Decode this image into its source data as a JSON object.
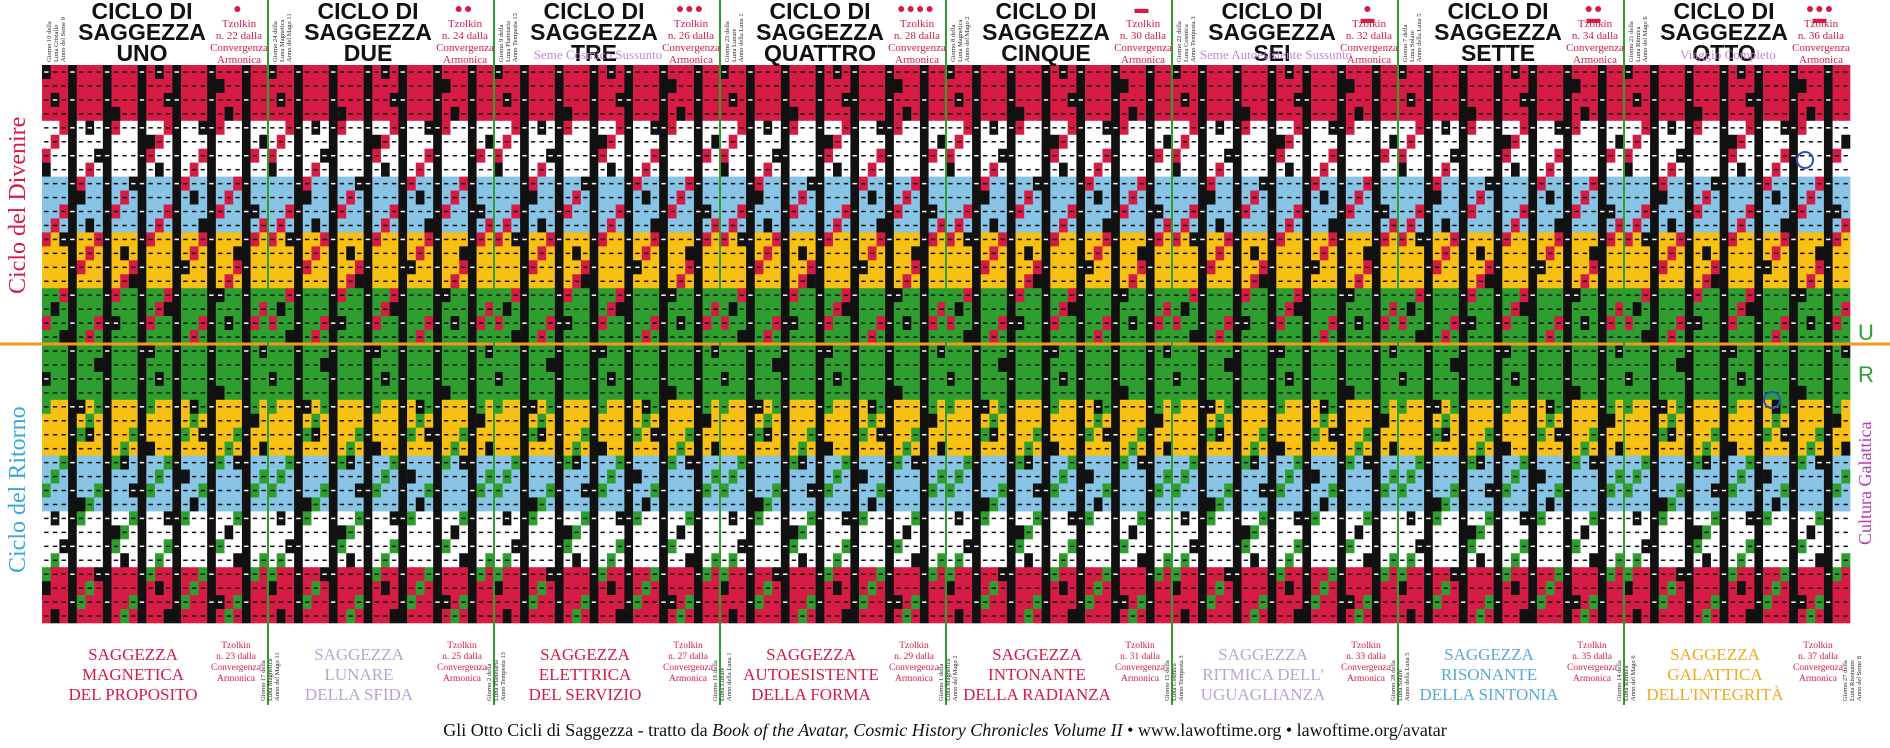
{
  "cycles": [
    {
      "title": "CICLO DI\nSAGGEZZA\nUNO",
      "dots": "●",
      "tzolkin": "Tzolkin\nn. 22 dalla\nConvergenza\nArmonica",
      "subtitle": "",
      "vert": "Giorno 10 della\nLuna Cristallo\nAnno del Seme 9"
    },
    {
      "title": "CICLO DI\nSAGGEZZA\nDUE",
      "dots": "●●",
      "tzolkin": "Tzolkin\nn. 24 dalla\nConvergenza\nArmonica",
      "subtitle": "",
      "vert": "Giorno 24 della\nLuna Magnetica\nAnno del Mago 11"
    },
    {
      "title": "CICLO DI\nSAGGEZZA  TRE",
      "dots": "●●●",
      "tzolkin": "Tzolkin\nn. 26 dalla\nConvergenza\nArmonica",
      "subtitle": "Seme Cosmico Sussunto",
      "vert": "Giorno 9 della\nLuna Planetaria\nAnno Tempesta 13"
    },
    {
      "title": "CICLO DI\nSAGGEZZA\nQUATTRO",
      "dots": "●●●●",
      "tzolkin": "Tzolkin\nn. 28 dalla\nConvergenza\nArmonica",
      "subtitle": "",
      "vert": "Giorno 23 della\nLuna Lunare\nAnno della Luna 1"
    },
    {
      "title": "CICLO DI\nSAGGEZZA\nCINQUE",
      "dots": "▬",
      "tzolkin": "Tzolkin\nn. 30 dalla\nConvergenza\nArmonica",
      "subtitle": "",
      "vert": "Giorno 8 della\nLuna Magnetica\nAnno del Mago 2"
    },
    {
      "title": "CICLO DI\nSAGGEZZA\nSEI",
      "dots": "●\n▬",
      "tzolkin": "Tzolkin\nn. 32 dalla\nConvergenza\nArmonica",
      "subtitle": "Seme Autoesistente Sussunto",
      "vert": "Giorno 22 della\nLuna Cosmica\nAnno Tempesta 3"
    },
    {
      "title": "CICLO DI\nSAGGEZZA\nSETTE",
      "dots": "●●\n▬",
      "tzolkin": "Tzolkin\nn. 34 dalla\nConvergenza\nArmonica",
      "subtitle": "",
      "vert": "Giorno 7 della\nLuna Solare\nAnno della Luna 5"
    },
    {
      "title": "CICLO DI\nSAGGEZZA\nOTTO",
      "dots": "●●●\n▬",
      "tzolkin": "Tzolkin\nn. 36 dalla\nConvergenza\nArmonica",
      "subtitle": "Viaggio Completo",
      "vert": "Giorno 21 della\nLuna Ritmica\nAnno del Mago 6"
    }
  ],
  "bottom": [
    {
      "name": "SAGGEZZA\nMAGNETICA\nDEL PROPOSITO",
      "color": "#d61b45",
      "tzolkin": "Tzolkin\nn. 23 dalla\nConvergenza\nArmonica",
      "vert": "Giorno 17 della\nLuna Magnetica\nAnno del Mago 11"
    },
    {
      "name": "SAGGEZZA\nLUNARE\nDELLA SFIDA",
      "color": "#b9a3d6",
      "tzolkin": "Tzolkin\nn. 25 dalla\nConvergenza\nArmonica",
      "vert": "Giorno 2 della\nLuna Planetaria\nAnno Tempesta 13"
    },
    {
      "name": "SAGGEZZA\nELETTRICA\nDEL SERVIZIO",
      "color": "#d61b45",
      "tzolkin": "Tzolkin\nn. 27 dalla\nConvergenza\nArmonica",
      "vert": "Giorno 16 della\nLuna Lunare\nAnno della Luna 1"
    },
    {
      "name": "SAGGEZZA\nAUTOESISTENTE\nDELLA FORMA",
      "color": "#d61b45",
      "tzolkin": "Tzolkin\nn. 29 dalla\nConvergenza\nArmonica",
      "vert": "Giorno 1 della\nLuna Magnetica\nAnno del Mago 2"
    },
    {
      "name": "SAGGEZZA\nINTONANTE\nDELLA RADIANZA",
      "color": "#d61b45",
      "tzolkin": "Tzolkin\nn. 31 dalla\nConvergenza\nArmonica",
      "vert": "Giorno 15 della\nLuna Cosmica\nAnno Tempesta 3"
    },
    {
      "name": "SAGGEZZA\nRITMICA DELL'\nUGUAGLIANZA",
      "color": "#b9a3d6",
      "tzolkin": "Tzolkin\nn. 33 dalla\nConvergenza\nArmonica",
      "vert": "Giorno 28 della\nLuna Solare\nAnno della Luna 5"
    },
    {
      "name": "SAGGEZZA\nRISONANTE\nDELLA SINTONIA",
      "color": "#5aa8d6",
      "tzolkin": "Tzolkin\nn. 35 dalla\nConvergenza\nArmonica",
      "vert": "Giorno 14 della\nLuna Ritmica\nAnno del Mago 6"
    },
    {
      "name": "SAGGEZZA\nGALATTICA\nDELL'INTEGRITÀ",
      "color": "#f2a81d",
      "tzolkin": "Tzolkin\nn. 37 dalla\nConvergenza\nArmonica",
      "vert": "Giorno 27 della\nLuna Risonante\nAnno del Seme 8"
    }
  ],
  "side_left_top": "Ciclo del Divenire",
  "side_left_bottom": "Ciclo del Ritorno",
  "side_right_U": "U",
  "side_right_R": "R",
  "side_right_text": "Cultura Galattica",
  "footer": {
    "prefix": "Gli Otto Cicli di Saggezza - tratto da ",
    "book": "Book of the Avatar, Cosmic History Chronicles Volume II",
    "links": " • www.lawoftime.org • lawoftime.org/avatar"
  },
  "colors": {
    "red": "#d61b45",
    "white": "#ffffff",
    "blue": "#88c4e6",
    "yellow": "#f8c012",
    "green": "#2e9f2f",
    "black": "#111111",
    "orange": "#f39a1e"
  }
}
